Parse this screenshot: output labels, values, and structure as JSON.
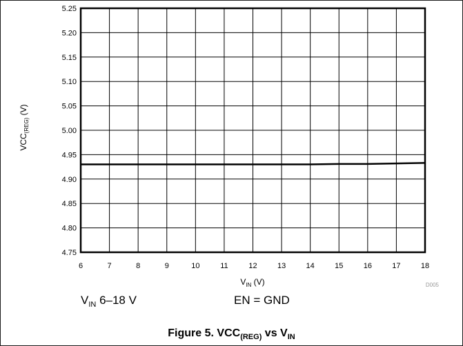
{
  "chart_data": {
    "type": "line",
    "x": [
      6,
      7,
      8,
      9,
      10,
      11,
      12,
      13,
      14,
      15,
      16,
      17,
      18
    ],
    "series": [
      {
        "values": [
          4.93,
          4.93,
          4.93,
          4.93,
          4.93,
          4.93,
          4.93,
          4.93,
          4.93,
          4.931,
          4.931,
          4.932,
          4.933
        ]
      }
    ],
    "xlim": [
      6,
      18
    ],
    "ylim": [
      4.75,
      5.25
    ],
    "xticks": [
      "6",
      "7",
      "8",
      "9",
      "10",
      "11",
      "12",
      "13",
      "14",
      "15",
      "16",
      "17",
      "18"
    ],
    "yticks": [
      "4.75",
      "4.80",
      "4.85",
      "4.90",
      "4.95",
      "5.00",
      "5.05",
      "5.10",
      "5.15",
      "5.20",
      "5.25"
    ],
    "xlabel": {
      "main": "V",
      "sub": "IN",
      "unit": "(V)"
    },
    "ylabel": {
      "main": "VCC",
      "sub": "(REG)",
      "unit": "(V)"
    },
    "grid": true,
    "line_color": "#000000",
    "grid_color": "#000000",
    "id_tag": "D005"
  },
  "conditions": {
    "vin_main": "V",
    "vin_sub": "IN",
    "vin_range": " 6–18 V",
    "en": "EN = GND"
  },
  "caption": {
    "prefix": "Figure 5. VCC",
    "sub1": "(REG)",
    "mid": " vs V",
    "sub2": "IN"
  }
}
